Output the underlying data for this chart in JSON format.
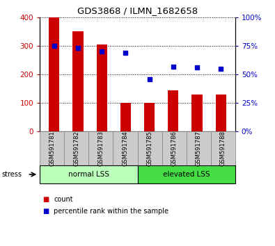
{
  "title": "GDS3868 / ILMN_1682658",
  "samples": [
    "GSM591781",
    "GSM591782",
    "GSM591783",
    "GSM591784",
    "GSM591785",
    "GSM591786",
    "GSM591787",
    "GSM591788"
  ],
  "counts": [
    400,
    350,
    305,
    100,
    100,
    145,
    130,
    130
  ],
  "percentiles": [
    75,
    73,
    70,
    69,
    46,
    57,
    56,
    55
  ],
  "groups": [
    {
      "label": "normal LSS",
      "start": 0,
      "end": 4,
      "color": "#bbffbb"
    },
    {
      "label": "elevated LSS",
      "start": 4,
      "end": 8,
      "color": "#44dd44"
    }
  ],
  "bar_color": "#cc0000",
  "dot_color": "#0000cc",
  "ylim_left": [
    0,
    400
  ],
  "ylim_right": [
    0,
    100
  ],
  "yticks_left": [
    0,
    100,
    200,
    300,
    400
  ],
  "yticks_right": [
    0,
    25,
    50,
    75,
    100
  ],
  "ytick_labels_right": [
    "0%",
    "25%",
    "50%",
    "75%",
    "100%"
  ],
  "background_color": "#ffffff",
  "tick_label_color_left": "#cc0000",
  "tick_label_color_right": "#0000cc",
  "legend_count": "count",
  "legend_pct": "percentile rank within the sample",
  "bar_width": 0.45,
  "gray_cell_color": "#cccccc",
  "cell_edge_color": "#888888"
}
